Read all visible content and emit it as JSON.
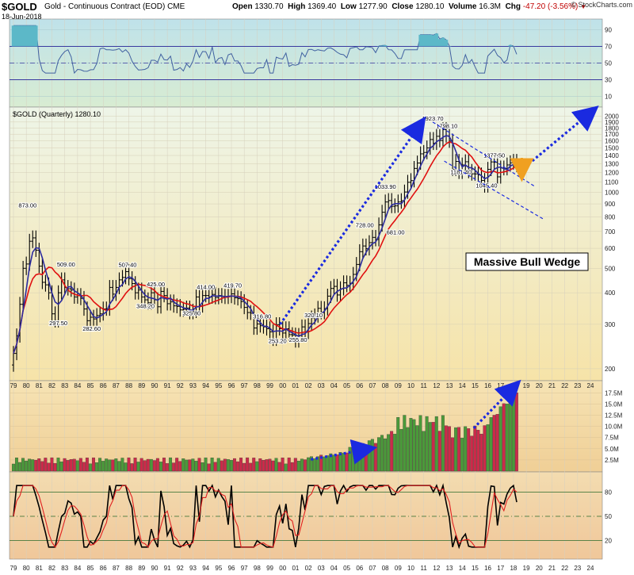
{
  "header": {
    "symbol": "$GOLD",
    "name": "Gold - Continuous Contract (EOD)",
    "exchange": "CME",
    "date": "18-Jun-2018",
    "open_label": "Open",
    "open": "1330.70",
    "high_label": "High",
    "high": "1369.40",
    "low_label": "Low",
    "low": "1277.90",
    "close_label": "Close",
    "close": "1280.10",
    "volume_label": "Volume",
    "volume": "16.3M",
    "chg_label": "Chg",
    "chg": "-47.20 (-3.56%)",
    "credit": "© StockCharts.com"
  },
  "colors": {
    "price_bg_top": "#eef5e8",
    "price_bg_bottom": "#f6e3a8",
    "rsi_bg": "#c6e4e9",
    "vol_bg": "#f2d4a2",
    "stoch_bg": "#f2d4a2",
    "bar_color": "#000000",
    "ma_fast": "#2b2b9e",
    "ma_slow": "#e01010",
    "arrow_blue": "#1a2ae0",
    "arrow_orange": "#f0a020",
    "vol_up": "#4a9a3a",
    "vol_down": "#cc2a4a",
    "rsi_fill": "#5cb8c8",
    "stoch_k": "#000000",
    "stoch_d": "#e02020"
  },
  "chart_data": {
    "type": "line",
    "title": "$GOLD (Quarterly) 1280.10",
    "x_ticks": [
      "79",
      "80",
      "81",
      "82",
      "83",
      "84",
      "85",
      "86",
      "87",
      "88",
      "89",
      "90",
      "91",
      "92",
      "93",
      "94",
      "95",
      "96",
      "97",
      "98",
      "99",
      "00",
      "01",
      "02",
      "03",
      "04",
      "05",
      "06",
      "07",
      "08",
      "09",
      "10",
      "11",
      "12",
      "13",
      "14",
      "15",
      "16",
      "17",
      "18",
      "19",
      "20",
      "21",
      "22",
      "23",
      "24"
    ],
    "price_axis": {
      "scale": "log",
      "ylim": [
        190,
        2100
      ],
      "ticks": [
        "2000",
        "1900",
        "1800",
        "1700",
        "1600",
        "1500",
        "1400",
        "1300",
        "1200",
        "1100",
        "1000",
        "900",
        "800",
        "700",
        "600",
        "500",
        "400",
        "300",
        "200"
      ]
    },
    "price_annotations": [
      {
        "x": 1980.1,
        "y": 873,
        "label": "873.00"
      },
      {
        "x": 1982.5,
        "y": 297.5,
        "label": "297.50"
      },
      {
        "x": 1983.1,
        "y": 509,
        "label": "509.00"
      },
      {
        "x": 1985.1,
        "y": 282.6,
        "label": "282.60"
      },
      {
        "x": 1987.9,
        "y": 507.4,
        "label": "507.40"
      },
      {
        "x": 1989.3,
        "y": 348.2,
        "label": "348.20"
      },
      {
        "x": 1990.1,
        "y": 425,
        "label": "425.00"
      },
      {
        "x": 1992.9,
        "y": 325.8,
        "label": "325.80"
      },
      {
        "x": 1994.0,
        "y": 414,
        "label": "414.00"
      },
      {
        "x": 1996.1,
        "y": 419.7,
        "label": "419.70"
      },
      {
        "x": 1998.4,
        "y": 316.8,
        "label": "316.80"
      },
      {
        "x": 1999.6,
        "y": 253.2,
        "label": "253.20"
      },
      {
        "x": 2001.2,
        "y": 255.8,
        "label": "255.80"
      },
      {
        "x": 2002.4,
        "y": 320.1,
        "label": "320.10"
      },
      {
        "x": 2006.4,
        "y": 728,
        "label": "728.00"
      },
      {
        "x": 2008.0,
        "y": 1033.9,
        "label": "1033.90"
      },
      {
        "x": 2008.8,
        "y": 681,
        "label": "681.00"
      },
      {
        "x": 2011.7,
        "y": 1923.7,
        "label": "1923.70"
      },
      {
        "x": 2012.8,
        "y": 1798.1,
        "label": "1798.10"
      },
      {
        "x": 2013.9,
        "y": 1181.4,
        "label": "1181.40"
      },
      {
        "x": 2015.9,
        "y": 1045.4,
        "label": "1045.40"
      },
      {
        "x": 2016.5,
        "y": 1377.5,
        "label": "1377.50"
      }
    ],
    "quarterly_closes": [
      [
        1979.0,
        230
      ],
      [
        1979.25,
        270
      ],
      [
        1979.5,
        360
      ],
      [
        1979.75,
        500
      ],
      [
        1980.0,
        520
      ],
      [
        1980.25,
        640
      ],
      [
        1980.5,
        660
      ],
      [
        1980.75,
        590
      ],
      [
        1981.0,
        510
      ],
      [
        1981.25,
        440
      ],
      [
        1981.5,
        430
      ],
      [
        1981.75,
        400
      ],
      [
        1982.0,
        330
      ],
      [
        1982.25,
        310
      ],
      [
        1982.5,
        400
      ],
      [
        1982.75,
        450
      ],
      [
        1983.0,
        420
      ],
      [
        1983.25,
        415
      ],
      [
        1983.5,
        410
      ],
      [
        1983.75,
        385
      ],
      [
        1984.0,
        390
      ],
      [
        1984.25,
        380
      ],
      [
        1984.5,
        345
      ],
      [
        1984.75,
        310
      ],
      [
        1985.0,
        320
      ],
      [
        1985.25,
        315
      ],
      [
        1985.5,
        325
      ],
      [
        1985.75,
        330
      ],
      [
        1986.0,
        345
      ],
      [
        1986.25,
        345
      ],
      [
        1986.5,
        420
      ],
      [
        1986.75,
        395
      ],
      [
        1987.0,
        420
      ],
      [
        1987.25,
        450
      ],
      [
        1987.5,
        460
      ],
      [
        1987.75,
        485
      ],
      [
        1988.0,
        455
      ],
      [
        1988.25,
        435
      ],
      [
        1988.5,
        400
      ],
      [
        1988.75,
        410
      ],
      [
        1989.0,
        385
      ],
      [
        1989.25,
        375
      ],
      [
        1989.5,
        365
      ],
      [
        1989.75,
        400
      ],
      [
        1990.0,
        375
      ],
      [
        1990.25,
        352
      ],
      [
        1990.5,
        405
      ],
      [
        1990.75,
        390
      ],
      [
        1991.0,
        362
      ],
      [
        1991.25,
        368
      ],
      [
        1991.5,
        355
      ],
      [
        1991.75,
        353
      ],
      [
        1992.0,
        342
      ],
      [
        1992.25,
        344
      ],
      [
        1992.5,
        348
      ],
      [
        1992.75,
        334
      ],
      [
        1993.0,
        338
      ],
      [
        1993.25,
        385
      ],
      [
        1993.5,
        355
      ],
      [
        1993.75,
        390
      ],
      [
        1994.0,
        390
      ],
      [
        1994.25,
        385
      ],
      [
        1994.5,
        394
      ],
      [
        1994.75,
        383
      ],
      [
        1995.0,
        390
      ],
      [
        1995.25,
        387
      ],
      [
        1995.5,
        384
      ],
      [
        1995.75,
        387
      ],
      [
        1996.0,
        396
      ],
      [
        1996.25,
        382
      ],
      [
        1996.5,
        379
      ],
      [
        1996.75,
        369
      ],
      [
        1997.0,
        350
      ],
      [
        1997.25,
        334
      ],
      [
        1997.5,
        332
      ],
      [
        1997.75,
        290
      ],
      [
        1998.0,
        301
      ],
      [
        1998.25,
        296
      ],
      [
        1998.5,
        293
      ],
      [
        1998.75,
        288
      ],
      [
        1999.0,
        280
      ],
      [
        1999.25,
        262
      ],
      [
        1999.5,
        299
      ],
      [
        1999.75,
        288
      ],
      [
        2000.0,
        277
      ],
      [
        2000.25,
        288
      ],
      [
        2000.5,
        273
      ],
      [
        2000.75,
        272
      ],
      [
        2001.0,
        258
      ],
      [
        2001.25,
        271
      ],
      [
        2001.5,
        293
      ],
      [
        2001.75,
        279
      ],
      [
        2002.0,
        302
      ],
      [
        2002.25,
        318
      ],
      [
        2002.5,
        324
      ],
      [
        2002.75,
        347
      ],
      [
        2003.0,
        334
      ],
      [
        2003.25,
        346
      ],
      [
        2003.5,
        388
      ],
      [
        2003.75,
        416
      ],
      [
        2004.0,
        424
      ],
      [
        2004.25,
        392
      ],
      [
        2004.5,
        415
      ],
      [
        2004.75,
        438
      ],
      [
        2005.0,
        428
      ],
      [
        2005.25,
        436
      ],
      [
        2005.5,
        473
      ],
      [
        2005.75,
        518
      ],
      [
        2006.0,
        582
      ],
      [
        2006.25,
        613
      ],
      [
        2006.5,
        598
      ],
      [
        2006.75,
        632
      ],
      [
        2007.0,
        663
      ],
      [
        2007.25,
        650
      ],
      [
        2007.5,
        743
      ],
      [
        2007.75,
        834
      ],
      [
        2008.0,
        916
      ],
      [
        2008.25,
        928
      ],
      [
        2008.5,
        880
      ],
      [
        2008.75,
        884
      ],
      [
        2009.0,
        916
      ],
      [
        2009.25,
        927
      ],
      [
        2009.5,
        1003
      ],
      [
        2009.75,
        1096
      ],
      [
        2010.0,
        1113
      ],
      [
        2010.25,
        1244
      ],
      [
        2010.5,
        1307
      ],
      [
        2010.75,
        1421
      ],
      [
        2011.0,
        1439
      ],
      [
        2011.25,
        1500
      ],
      [
        2011.5,
        1620
      ],
      [
        2011.75,
        1566
      ],
      [
        2012.0,
        1668
      ],
      [
        2012.25,
        1604
      ],
      [
        2012.5,
        1772
      ],
      [
        2012.75,
        1675
      ],
      [
        2013.0,
        1597
      ],
      [
        2013.25,
        1234
      ],
      [
        2013.5,
        1326
      ],
      [
        2013.75,
        1202
      ],
      [
        2014.0,
        1284
      ],
      [
        2014.25,
        1322
      ],
      [
        2014.5,
        1210
      ],
      [
        2014.75,
        1184
      ],
      [
        2015.0,
        1183
      ],
      [
        2015.25,
        1172
      ],
      [
        2015.5,
        1115
      ],
      [
        2015.75,
        1061
      ],
      [
        2016.0,
        1234
      ],
      [
        2016.25,
        1320
      ],
      [
        2016.5,
        1316
      ],
      [
        2016.75,
        1152
      ],
      [
        2017.0,
        1249
      ],
      [
        2017.25,
        1242
      ],
      [
        2017.5,
        1284
      ],
      [
        2017.75,
        1309
      ],
      [
        2018.0,
        1327
      ],
      [
        2018.25,
        1280
      ]
    ],
    "volume_axis": {
      "ticks": [
        "17.5M",
        "15.0M",
        "12.5M",
        "10.0M",
        "7.5M",
        "5.0M",
        "2.5M"
      ],
      "ylim": [
        0,
        19.5
      ]
    },
    "rsi_axis": {
      "ticks": [
        "90",
        "70",
        "50",
        "30",
        "10"
      ],
      "ylim": [
        0,
        100
      ]
    },
    "stoch_axis": {
      "ticks": [
        "80",
        "50",
        "20"
      ],
      "ylim": [
        0,
        100
      ]
    },
    "annotation_box": "Massive Bull Wedge"
  }
}
